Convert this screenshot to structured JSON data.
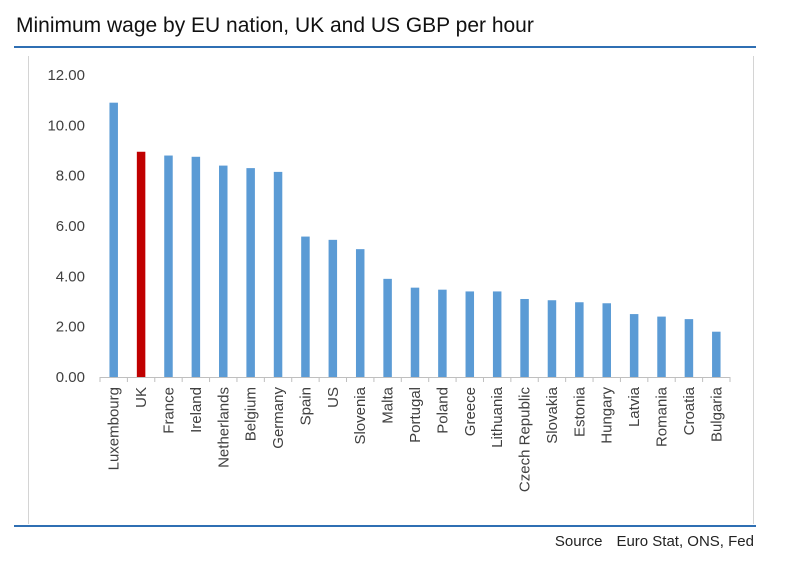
{
  "title": "Minimum wage by EU nation, UK and US GBP per hour",
  "source": {
    "label": "Source",
    "text": "Euro Stat, ONS, Fed"
  },
  "colors": {
    "bar": "#5b9bd5",
    "highlight": "#c00000",
    "axis": "#bfbfbf",
    "text": "#404040",
    "rule": "#2f6fb3"
  },
  "chart_data": {
    "type": "bar",
    "title": "Minimum wage by EU nation, UK and US GBP per hour",
    "xlabel": "",
    "ylabel": "",
    "ylim": [
      0,
      12
    ],
    "yticks": [
      "0.00",
      "2.00",
      "4.00",
      "6.00",
      "8.00",
      "10.00",
      "12.00"
    ],
    "grid": false,
    "highlight_category": "UK",
    "categories": [
      "Luxembourg",
      "UK",
      "France",
      "Ireland",
      "Netherlands",
      "Belgium",
      "Germany",
      "Spain",
      "US",
      "Slovenia",
      "Malta",
      "Portugal",
      "Poland",
      "Greece",
      "Lithuania",
      "Czech Republic",
      "Slovakia",
      "Estonia",
      "Hungary",
      "Latvia",
      "Romania",
      "Croatia",
      "Bulgaria"
    ],
    "values": [
      10.9,
      8.95,
      8.8,
      8.75,
      8.4,
      8.3,
      8.15,
      5.58,
      5.45,
      5.08,
      3.9,
      3.55,
      3.47,
      3.4,
      3.4,
      3.1,
      3.05,
      2.97,
      2.93,
      2.5,
      2.4,
      2.3,
      1.8
    ]
  }
}
